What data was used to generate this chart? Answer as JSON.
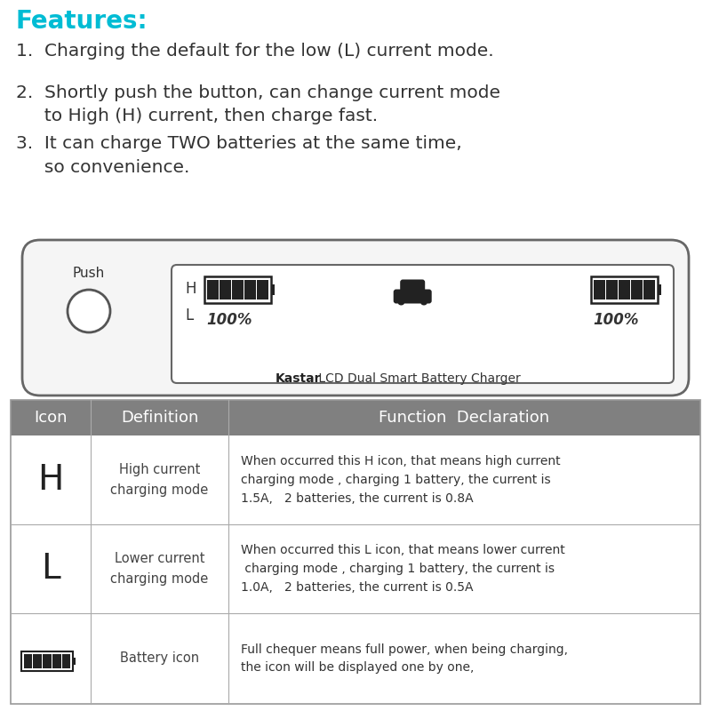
{
  "bg_color": "#ffffff",
  "features_title": "Features:",
  "features_color": "#00bcd4",
  "features_fontsize": 20,
  "items_fontsize": 14.5,
  "items_color": "#333333",
  "charger_label": "Kastar",
  "charger_label2": " LCD Dual Smart Battery Charger",
  "table_header_bg": "#808080",
  "table_header_color": "#ffffff",
  "table_border_color": "#aaaaaa",
  "col_icon": "Icon",
  "col_def": "Definition",
  "col_func": "Function  Declaration",
  "row1_icon": "H",
  "row1_def": "High current\ncharging mode",
  "row1_func": "When occurred this H icon, that means high current\ncharging mode , charging 1 battery, the current is\n1.5A,   2 batteries, the current is 0.8A",
  "row2_icon": "L",
  "row2_def": "Lower current\ncharging mode",
  "row2_func": "When occurred this L icon, that means lower current\n charging mode , charging 1 battery, the current is\n1.0A,   2 batteries, the current is 0.5A",
  "row3_def": "Battery icon",
  "row3_func": "Full chequer means full power, when being charging,\nthe icon will be displayed one by one,"
}
